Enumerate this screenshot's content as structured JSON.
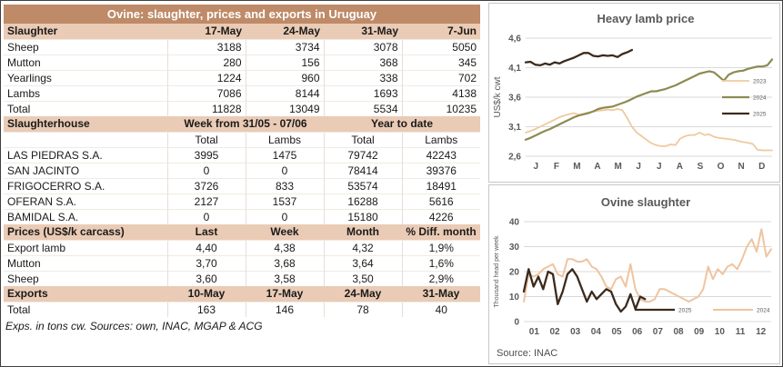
{
  "colors": {
    "title_bar_bg": "#BE8A68",
    "title_bar_text": "#FFFFFF",
    "section_header_bg": "#EACBB5",
    "series_2023": "#F0C9A0",
    "series_2024_olive": "#8D8A52",
    "series_2025_dark": "#3B2A1D",
    "series_2024_tan": "#EFC49E",
    "chart_text": "#595959",
    "grid": "#D9D9D9"
  },
  "table": {
    "title": "Ovine: slaughter, prices and exports in Uruguay",
    "slaughter": {
      "label": "Slaughter",
      "columns": [
        "17-May",
        "24-May",
        "31-May",
        "7-Jun"
      ],
      "rows": [
        {
          "label": "Sheep",
          "values": [
            "3188",
            "3734",
            "3078",
            "5050"
          ]
        },
        {
          "label": "Mutton",
          "values": [
            "280",
            "156",
            "368",
            "345"
          ]
        },
        {
          "label": "Yearlings",
          "values": [
            "1224",
            "960",
            "338",
            "702"
          ]
        },
        {
          "label": "Lambs",
          "values": [
            "7086",
            "8144",
            "1693",
            "4138"
          ]
        },
        {
          "label": "Total",
          "values": [
            "11828",
            "13049",
            "5534",
            "10235"
          ]
        }
      ]
    },
    "slaughterhouse": {
      "label": "Slaughterhouse",
      "group_headers": [
        "Week from 31/05 - 07/06",
        "Year to date"
      ],
      "sub_columns": [
        "Total",
        "Lambs",
        "Total",
        "Lambs"
      ],
      "rows": [
        {
          "label": "LAS PIEDRAS S.A.",
          "values": [
            "3995",
            "1475",
            "79742",
            "42243"
          ]
        },
        {
          "label": "SAN JACINTO",
          "values": [
            "0",
            "0",
            "78414",
            "39376"
          ]
        },
        {
          "label": "FRIGOCERRO S.A.",
          "values": [
            "3726",
            "833",
            "53574",
            "18491"
          ]
        },
        {
          "label": "OFERAN S.A.",
          "values": [
            "2127",
            "1537",
            "16288",
            "5616"
          ]
        },
        {
          "label": "BAMIDAL S.A.",
          "values": [
            "0",
            "0",
            "15180",
            "4226"
          ]
        }
      ]
    },
    "prices": {
      "label": "Prices (US$/k carcass)",
      "columns": [
        "Last",
        "Week",
        "Month",
        "% Diff. month"
      ],
      "rows": [
        {
          "label": "Export lamb",
          "values": [
            "4,40",
            "4,38",
            "4,32",
            "1,9%"
          ]
        },
        {
          "label": "Mutton",
          "values": [
            "3,70",
            "3,68",
            "3,64",
            "1,6%"
          ]
        },
        {
          "label": "Sheep",
          "values": [
            "3,60",
            "3,58",
            "3,50",
            "2,9%"
          ]
        }
      ]
    },
    "exports": {
      "label": "Exports",
      "columns": [
        "10-May",
        "17-May",
        "24-May",
        "31-May"
      ],
      "rows": [
        {
          "label": "Total",
          "values": [
            "163",
            "146",
            "78",
            "40"
          ]
        }
      ]
    },
    "footnote": "Exps. in tons cw. Sources: own, INAC, MGAP & ACG"
  },
  "chart_data": [
    {
      "type": "line",
      "title": "Heavy lamb price",
      "ylabel": "US$/k cwt",
      "ylim": [
        2.6,
        4.6
      ],
      "ytick_values": [
        2.6,
        3.1,
        3.6,
        4.1,
        4.6
      ],
      "ytick_labels": [
        "2,6",
        "3,1",
        "3,6",
        "4,1",
        "4,6"
      ],
      "x_axis_labels": [
        "J",
        "F",
        "M",
        "A",
        "M",
        "J",
        "J",
        "A",
        "S",
        "O",
        "N",
        "D"
      ],
      "x_total": 52,
      "grid": true,
      "legend_position": "right-inside",
      "series": [
        {
          "name": "2023",
          "color": "#F0C9A0",
          "width": 1.8,
          "values": [
            3.0,
            3.03,
            3.06,
            3.1,
            3.14,
            3.18,
            3.22,
            3.26,
            3.29,
            3.31,
            3.33,
            3.3,
            3.32,
            3.34,
            3.36,
            3.37,
            3.38,
            3.39,
            3.38,
            3.4,
            3.38,
            3.25,
            3.1,
            3.0,
            2.94,
            2.88,
            2.82,
            2.79,
            2.77,
            2.77,
            2.8,
            2.79,
            2.9,
            2.94,
            2.96,
            2.96,
            3.0,
            2.96,
            2.97,
            2.93,
            2.91,
            2.9,
            2.89,
            2.88,
            2.86,
            2.84,
            2.83,
            2.81,
            2.71,
            2.7,
            2.7,
            2.7
          ]
        },
        {
          "name": "2024",
          "color": "#8D8A52",
          "width": 2.2,
          "values": [
            2.88,
            2.91,
            2.95,
            2.99,
            3.03,
            3.06,
            3.1,
            3.14,
            3.18,
            3.22,
            3.26,
            3.29,
            3.31,
            3.33,
            3.36,
            3.4,
            3.42,
            3.43,
            3.44,
            3.47,
            3.5,
            3.53,
            3.57,
            3.61,
            3.64,
            3.67,
            3.7,
            3.7,
            3.72,
            3.74,
            3.77,
            3.8,
            3.84,
            3.88,
            3.92,
            3.96,
            4.0,
            4.02,
            4.04,
            4.02,
            3.95,
            3.88,
            3.98,
            4.02,
            4.04,
            4.05,
            4.08,
            4.1,
            4.12,
            4.12,
            4.14,
            4.24
          ]
        },
        {
          "name": "2025",
          "color": "#3B2A1D",
          "width": 2.3,
          "values": [
            4.19,
            4.2,
            4.15,
            4.14,
            4.17,
            4.15,
            4.19,
            4.17,
            4.21,
            4.24,
            4.27,
            4.31,
            4.35,
            4.35,
            4.3,
            4.29,
            4.31,
            4.3,
            4.31,
            4.28,
            4.33,
            4.36,
            4.4
          ]
        }
      ]
    },
    {
      "type": "line",
      "title": "Ovine slaughter",
      "ylabel": "Thousand head per week",
      "ylim": [
        0,
        40
      ],
      "ytick_values": [
        0,
        10,
        20,
        30,
        40
      ],
      "ytick_labels": [
        "0",
        "10",
        "20",
        "30",
        "40"
      ],
      "x_axis_labels": [
        "01",
        "02",
        "03",
        "04",
        "05",
        "06",
        "07",
        "08",
        "09",
        "10",
        "11",
        "12"
      ],
      "x_total": 52,
      "grid": true,
      "legend_position": "bottom-inside",
      "source": "Source: INAC",
      "series": [
        {
          "name": "2024",
          "color": "#EFC49E",
          "width": 2.0,
          "values": [
            8,
            19,
            18,
            19,
            21,
            22,
            23,
            19,
            18,
            25,
            25,
            24,
            24,
            25,
            22,
            21,
            18,
            14,
            13,
            17,
            18,
            14,
            23,
            13,
            9,
            8,
            8,
            9,
            13,
            13,
            12,
            11,
            10,
            9,
            8,
            9,
            10,
            13,
            22,
            17,
            21,
            19,
            22,
            23,
            21,
            25,
            30,
            33,
            28,
            37,
            26,
            29
          ]
        },
        {
          "name": "2025",
          "color": "#3B2A1D",
          "width": 2.3,
          "values": [
            12,
            21,
            14,
            18,
            13,
            20,
            19,
            7,
            12,
            19,
            21,
            18,
            13,
            8,
            12,
            9,
            11,
            13,
            12,
            7,
            4,
            6,
            11,
            5,
            10,
            9
          ]
        }
      ],
      "legend_order": [
        "2025",
        "2024"
      ]
    }
  ]
}
